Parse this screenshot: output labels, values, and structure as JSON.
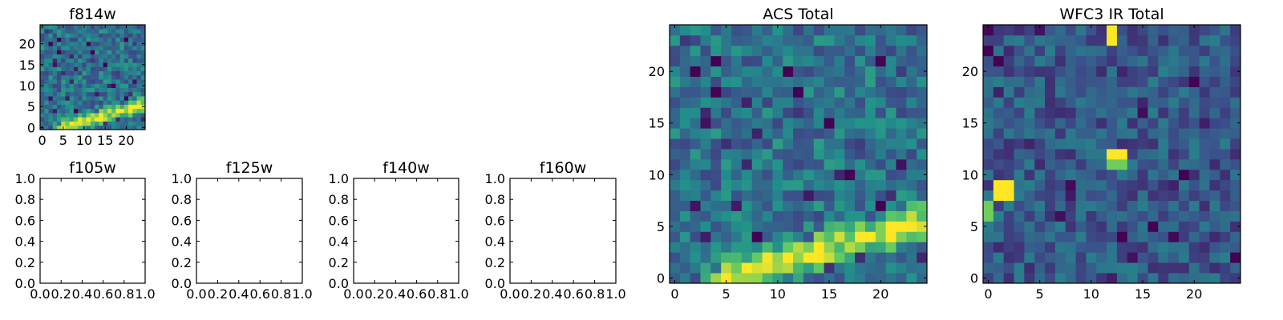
{
  "figure": {
    "colormap": [
      "#440154",
      "#3b528b",
      "#21918c",
      "#5ec962",
      "#fde725"
    ]
  },
  "chart_data": [
    {
      "type": "heatmap",
      "title": "f814w",
      "xlim": [
        -0.5,
        24.5
      ],
      "ylim": [
        -0.5,
        24.5
      ],
      "xticks": [
        "0",
        "5",
        "10",
        "15",
        "20"
      ],
      "yticks": [
        "0",
        "5",
        "10",
        "15",
        "20"
      ],
      "grid": false,
      "pattern": "diagonal-band-lower-right",
      "seed": 7
    },
    {
      "type": "heatmap",
      "title": "ACS Total",
      "xlim": [
        -0.5,
        24.5
      ],
      "ylim": [
        -0.5,
        24.5
      ],
      "xticks": [
        "0",
        "5",
        "10",
        "15",
        "20"
      ],
      "yticks": [
        "0",
        "5",
        "10",
        "15",
        "20"
      ],
      "grid": false,
      "pattern": "diagonal-band-lower-right",
      "seed": 7
    },
    {
      "type": "heatmap",
      "title": "WFC3 IR Total",
      "xlim": [
        -0.5,
        24.5
      ],
      "ylim": [
        -0.5,
        24.5
      ],
      "xticks": [
        "0",
        "5",
        "10",
        "15",
        "20"
      ],
      "yticks": [
        "0",
        "5",
        "10",
        "15",
        "20"
      ],
      "grid": false,
      "pattern": "noise-with-hotspots",
      "hot_pixels": [
        [
          12,
          24
        ],
        [
          12,
          23
        ],
        [
          12,
          12
        ],
        [
          13,
          12
        ],
        [
          1,
          9
        ],
        [
          2,
          9
        ],
        [
          1,
          8
        ],
        [
          2,
          8
        ]
      ],
      "warm_pixels": [
        [
          12,
          11
        ],
        [
          13,
          11
        ],
        [
          0,
          7
        ],
        [
          0,
          6
        ]
      ],
      "seed": 13
    },
    {
      "type": "heatmap",
      "title": "f105w",
      "xlim": [
        0,
        1
      ],
      "ylim": [
        0,
        1
      ],
      "xticks": [
        "0.0",
        "0.2",
        "0.4",
        "0.6",
        "0.8",
        "1.0"
      ],
      "yticks": [
        "0.0",
        "0.2",
        "0.4",
        "0.6",
        "0.8",
        "1.0"
      ],
      "grid": false,
      "empty": true
    },
    {
      "type": "heatmap",
      "title": "f125w",
      "xlim": [
        0,
        1
      ],
      "ylim": [
        0,
        1
      ],
      "xticks": [
        "0.0",
        "0.2",
        "0.4",
        "0.6",
        "0.8",
        "1.0"
      ],
      "yticks": [
        "0.0",
        "0.2",
        "0.4",
        "0.6",
        "0.8",
        "1.0"
      ],
      "grid": false,
      "empty": true
    },
    {
      "type": "heatmap",
      "title": "f140w",
      "xlim": [
        0,
        1
      ],
      "ylim": [
        0,
        1
      ],
      "xticks": [
        "0.0",
        "0.2",
        "0.4",
        "0.6",
        "0.8",
        "1.0"
      ],
      "yticks": [
        "0.0",
        "0.2",
        "0.4",
        "0.6",
        "0.8",
        "1.0"
      ],
      "grid": false,
      "empty": true
    },
    {
      "type": "heatmap",
      "title": "f160w",
      "xlim": [
        0,
        1
      ],
      "ylim": [
        0,
        1
      ],
      "xticks": [
        "0.0",
        "0.2",
        "0.4",
        "0.6",
        "0.8",
        "1.0"
      ],
      "yticks": [
        "0.0",
        "0.2",
        "0.4",
        "0.6",
        "0.8",
        "1.0"
      ],
      "grid": false,
      "empty": true
    }
  ]
}
